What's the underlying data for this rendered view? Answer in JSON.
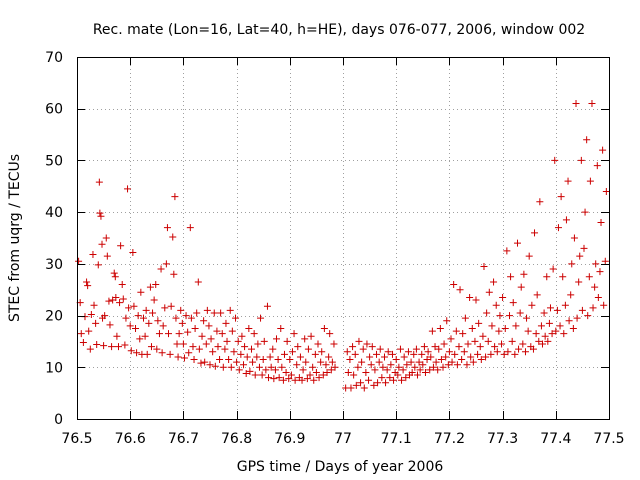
{
  "chart_data": {
    "type": "scatter",
    "title": "Rec. mate (Lon=16, Lat=40, h=HE), days 076-077, 2006, window 002",
    "xlabel": "GPS time / Days of year 2006",
    "ylabel": "STEC from uqrg / TECUs",
    "xlim": [
      76.5,
      77.5
    ],
    "ylim": [
      0,
      70
    ],
    "xticks": [
      76.5,
      76.6,
      76.7,
      76.8,
      76.9,
      77.0,
      77.1,
      77.2,
      77.3,
      77.4,
      77.5
    ],
    "xtick_labels": [
      "76.5",
      "76.6",
      "76.7",
      "76.8",
      "76.9",
      "77",
      "77.1",
      "77.2",
      "77.3",
      "77.4",
      "77.5"
    ],
    "yticks": [
      0,
      10,
      20,
      30,
      40,
      50,
      60,
      70
    ],
    "ytick_labels": [
      "0",
      "10",
      "20",
      "30",
      "40",
      "50",
      "60",
      "70"
    ],
    "grid": true,
    "marker": "+",
    "color": "#cc0000",
    "points": [
      [
        76.503,
        30.5
      ],
      [
        76.506,
        22.5
      ],
      [
        76.508,
        16.5
      ],
      [
        76.512,
        14.8
      ],
      [
        76.515,
        19.8
      ],
      [
        76.518,
        26.5
      ],
      [
        76.52,
        25.8
      ],
      [
        76.522,
        17.0
      ],
      [
        76.525,
        13.5
      ],
      [
        76.527,
        20.2
      ],
      [
        76.53,
        31.8
      ],
      [
        76.532,
        22.0
      ],
      [
        76.535,
        18.5
      ],
      [
        76.537,
        14.4
      ],
      [
        76.54,
        29.8
      ],
      [
        76.542,
        45.8
      ],
      [
        76.543,
        39.8
      ],
      [
        76.545,
        39.2
      ],
      [
        76.547,
        33.8
      ],
      [
        76.548,
        19.5
      ],
      [
        76.55,
        14.2
      ],
      [
        76.552,
        20.0
      ],
      [
        76.555,
        35.0
      ],
      [
        76.557,
        31.5
      ],
      [
        76.56,
        22.8
      ],
      [
        76.562,
        18.2
      ],
      [
        76.565,
        14.0
      ],
      [
        76.567,
        23.0
      ],
      [
        76.57,
        28.2
      ],
      [
        76.572,
        27.5
      ],
      [
        76.573,
        23.5
      ],
      [
        76.575,
        16.0
      ],
      [
        76.578,
        14.0
      ],
      [
        76.58,
        22.5
      ],
      [
        76.582,
        33.5
      ],
      [
        76.585,
        26.0
      ],
      [
        76.587,
        23.2
      ],
      [
        76.59,
        14.3
      ],
      [
        76.592,
        19.5
      ],
      [
        76.595,
        44.5
      ],
      [
        76.597,
        21.5
      ],
      [
        76.6,
        18.0
      ],
      [
        76.602,
        13.2
      ],
      [
        76.605,
        32.2
      ],
      [
        76.607,
        21.8
      ],
      [
        76.61,
        17.5
      ],
      [
        76.612,
        12.8
      ],
      [
        76.615,
        20.0
      ],
      [
        76.618,
        15.5
      ],
      [
        76.62,
        24.5
      ],
      [
        76.622,
        12.5
      ],
      [
        76.625,
        19.5
      ],
      [
        76.628,
        16.0
      ],
      [
        76.63,
        21.0
      ],
      [
        76.632,
        12.5
      ],
      [
        76.635,
        18.5
      ],
      [
        76.638,
        25.5
      ],
      [
        76.64,
        14.0
      ],
      [
        76.642,
        20.5
      ],
      [
        76.645,
        23.0
      ],
      [
        76.648,
        26.0
      ],
      [
        76.65,
        13.5
      ],
      [
        76.652,
        19.0
      ],
      [
        76.655,
        16.5
      ],
      [
        76.658,
        29.0
      ],
      [
        76.66,
        12.8
      ],
      [
        76.662,
        18.0
      ],
      [
        76.665,
        21.5
      ],
      [
        76.668,
        30.0
      ],
      [
        76.67,
        37.0
      ],
      [
        76.672,
        16.5
      ],
      [
        76.675,
        12.5
      ],
      [
        76.677,
        21.8
      ],
      [
        76.68,
        35.2
      ],
      [
        76.682,
        28.0
      ],
      [
        76.684,
        43.0
      ],
      [
        76.686,
        19.5
      ],
      [
        76.688,
        14.5
      ],
      [
        76.69,
        12.0
      ],
      [
        76.692,
        16.5
      ],
      [
        76.695,
        21.0
      ],
      [
        76.698,
        18.5
      ],
      [
        76.7,
        14.5
      ],
      [
        76.702,
        11.8
      ],
      [
        76.705,
        20.0
      ],
      [
        76.708,
        16.8
      ],
      [
        76.71,
        12.8
      ],
      [
        76.713,
        37.0
      ],
      [
        76.715,
        19.5
      ],
      [
        76.718,
        14.0
      ],
      [
        76.72,
        11.5
      ],
      [
        76.722,
        17.5
      ],
      [
        76.725,
        20.5
      ],
      [
        76.728,
        26.5
      ],
      [
        76.73,
        13.5
      ],
      [
        76.733,
        10.8
      ],
      [
        76.735,
        16.0
      ],
      [
        76.738,
        19.0
      ],
      [
        76.74,
        11.0
      ],
      [
        76.743,
        14.5
      ],
      [
        76.745,
        21.0
      ],
      [
        76.748,
        18.0
      ],
      [
        76.75,
        10.5
      ],
      [
        76.752,
        15.5
      ],
      [
        76.755,
        13.0
      ],
      [
        76.758,
        20.5
      ],
      [
        76.76,
        10.2
      ],
      [
        76.763,
        17.0
      ],
      [
        76.765,
        14.0
      ],
      [
        76.768,
        11.5
      ],
      [
        76.77,
        20.5
      ],
      [
        76.773,
        16.5
      ],
      [
        76.775,
        10.0
      ],
      [
        76.778,
        13.5
      ],
      [
        76.78,
        18.5
      ],
      [
        76.782,
        15.0
      ],
      [
        76.785,
        11.5
      ],
      [
        76.788,
        21.0
      ],
      [
        76.79,
        10.0
      ],
      [
        76.792,
        17.0
      ],
      [
        76.795,
        13.0
      ],
      [
        76.798,
        19.5
      ],
      [
        76.8,
        11.0
      ],
      [
        76.803,
        15.0
      ],
      [
        76.805,
        9.5
      ],
      [
        76.808,
        12.5
      ],
      [
        76.81,
        16.0
      ],
      [
        76.813,
        10.5
      ],
      [
        76.815,
        14.0
      ],
      [
        76.818,
        8.8
      ],
      [
        76.82,
        12.0
      ],
      [
        76.823,
        17.5
      ],
      [
        76.825,
        9.2
      ],
      [
        76.828,
        13.5
      ],
      [
        76.83,
        11.0
      ],
      [
        76.833,
        16.5
      ],
      [
        76.835,
        8.5
      ],
      [
        76.838,
        12.0
      ],
      [
        76.84,
        14.5
      ],
      [
        76.843,
        10.0
      ],
      [
        76.845,
        19.5
      ],
      [
        76.848,
        8.5
      ],
      [
        76.85,
        11.5
      ],
      [
        76.852,
        15.0
      ],
      [
        76.855,
        9.5
      ],
      [
        76.858,
        21.8
      ],
      [
        76.86,
        8.0
      ],
      [
        76.863,
        12.0
      ],
      [
        76.865,
        10.0
      ],
      [
        76.868,
        13.5
      ],
      [
        76.87,
        7.8
      ],
      [
        76.873,
        9.5
      ],
      [
        76.875,
        15.5
      ],
      [
        76.878,
        11.5
      ],
      [
        76.88,
        8.0
      ],
      [
        76.883,
        17.5
      ],
      [
        76.885,
        10.0
      ],
      [
        76.888,
        7.5
      ],
      [
        76.89,
        12.5
      ],
      [
        76.893,
        9.0
      ],
      [
        76.895,
        15.0
      ],
      [
        76.898,
        7.8
      ],
      [
        76.9,
        11.5
      ],
      [
        76.903,
        8.5
      ],
      [
        76.905,
        13.0
      ],
      [
        76.908,
        16.5
      ],
      [
        76.91,
        7.5
      ],
      [
        76.913,
        10.5
      ],
      [
        76.915,
        14.0
      ],
      [
        76.918,
        8.0
      ],
      [
        76.92,
        12.0
      ],
      [
        76.923,
        7.5
      ],
      [
        76.925,
        9.5
      ],
      [
        76.928,
        15.5
      ],
      [
        76.93,
        11.0
      ],
      [
        76.933,
        7.8
      ],
      [
        76.935,
        13.5
      ],
      [
        76.938,
        8.5
      ],
      [
        76.94,
        16.0
      ],
      [
        76.943,
        10.0
      ],
      [
        76.945,
        7.5
      ],
      [
        76.948,
        12.5
      ],
      [
        76.95,
        9.0
      ],
      [
        76.953,
        14.5
      ],
      [
        76.955,
        8.0
      ],
      [
        76.958,
        11.0
      ],
      [
        76.96,
        13.0
      ],
      [
        76.963,
        8.5
      ],
      [
        76.965,
        17.5
      ],
      [
        76.968,
        10.5
      ],
      [
        76.97,
        9.0
      ],
      [
        76.973,
        12.0
      ],
      [
        76.975,
        16.5
      ],
      [
        76.978,
        9.5
      ],
      [
        76.98,
        11.0
      ],
      [
        76.983,
        14.5
      ],
      [
        76.985,
        10.0
      ],
      [
        77.005,
        6.0
      ],
      [
        77.008,
        13.0
      ],
      [
        77.01,
        9.0
      ],
      [
        77.013,
        11.5
      ],
      [
        77.015,
        6.0
      ],
      [
        77.018,
        14.0
      ],
      [
        77.02,
        8.5
      ],
      [
        77.023,
        12.5
      ],
      [
        77.025,
        6.5
      ],
      [
        77.028,
        10.0
      ],
      [
        77.03,
        15.0
      ],
      [
        77.033,
        7.0
      ],
      [
        77.035,
        11.0
      ],
      [
        77.038,
        13.5
      ],
      [
        77.04,
        6.0
      ],
      [
        77.043,
        9.0
      ],
      [
        77.045,
        14.5
      ],
      [
        77.048,
        7.5
      ],
      [
        77.05,
        12.0
      ],
      [
        77.053,
        10.5
      ],
      [
        77.055,
        14.0
      ],
      [
        77.058,
        6.5
      ],
      [
        77.06,
        9.5
      ],
      [
        77.063,
        12.5
      ],
      [
        77.065,
        7.0
      ],
      [
        77.068,
        11.0
      ],
      [
        77.07,
        13.5
      ],
      [
        77.073,
        8.0
      ],
      [
        77.075,
        10.0
      ],
      [
        77.078,
        12.0
      ],
      [
        77.08,
        7.0
      ],
      [
        77.083,
        9.5
      ],
      [
        77.085,
        13.0
      ],
      [
        77.088,
        8.0
      ],
      [
        77.09,
        10.5
      ],
      [
        77.093,
        12.5
      ],
      [
        77.095,
        7.5
      ],
      [
        77.098,
        9.0
      ],
      [
        77.1,
        11.5
      ],
      [
        77.103,
        8.5
      ],
      [
        77.105,
        10.0
      ],
      [
        77.108,
        13.5
      ],
      [
        77.11,
        7.5
      ],
      [
        77.113,
        9.5
      ],
      [
        77.115,
        12.0
      ],
      [
        77.118,
        8.0
      ],
      [
        77.12,
        10.5
      ],
      [
        77.123,
        13.0
      ],
      [
        77.125,
        8.5
      ],
      [
        77.128,
        11.0
      ],
      [
        77.13,
        9.0
      ],
      [
        77.133,
        12.5
      ],
      [
        77.135,
        10.0
      ],
      [
        77.138,
        13.5
      ],
      [
        77.14,
        8.5
      ],
      [
        77.143,
        11.0
      ],
      [
        77.145,
        9.5
      ],
      [
        77.148,
        12.5
      ],
      [
        77.15,
        10.5
      ],
      [
        77.153,
        14.0
      ],
      [
        77.155,
        9.0
      ],
      [
        77.158,
        11.5
      ],
      [
        77.16,
        13.0
      ],
      [
        77.163,
        9.5
      ],
      [
        77.165,
        12.0
      ],
      [
        77.168,
        17.0
      ],
      [
        77.17,
        10.0
      ],
      [
        77.173,
        14.0
      ],
      [
        77.175,
        11.0
      ],
      [
        77.178,
        9.5
      ],
      [
        77.18,
        13.5
      ],
      [
        77.183,
        17.5
      ],
      [
        77.185,
        11.5
      ],
      [
        77.188,
        10.0
      ],
      [
        77.19,
        14.5
      ],
      [
        77.193,
        12.0
      ],
      [
        77.195,
        19.0
      ],
      [
        77.198,
        10.5
      ],
      [
        77.2,
        13.0
      ],
      [
        77.203,
        15.5
      ],
      [
        77.205,
        11.0
      ],
      [
        77.208,
        26.0
      ],
      [
        77.21,
        12.5
      ],
      [
        77.213,
        17.0
      ],
      [
        77.215,
        10.5
      ],
      [
        77.218,
        14.0
      ],
      [
        77.22,
        25.0
      ],
      [
        77.223,
        11.5
      ],
      [
        77.225,
        16.5
      ],
      [
        77.228,
        13.0
      ],
      [
        77.23,
        19.5
      ],
      [
        77.233,
        10.5
      ],
      [
        77.235,
        14.5
      ],
      [
        77.238,
        23.5
      ],
      [
        77.24,
        12.0
      ],
      [
        77.243,
        17.5
      ],
      [
        77.245,
        11.0
      ],
      [
        77.248,
        15.0
      ],
      [
        77.25,
        23.0
      ],
      [
        77.253,
        12.5
      ],
      [
        77.255,
        18.5
      ],
      [
        77.258,
        14.0
      ],
      [
        77.26,
        11.5
      ],
      [
        77.263,
        16.0
      ],
      [
        77.265,
        29.5
      ],
      [
        77.268,
        12.0
      ],
      [
        77.27,
        20.5
      ],
      [
        77.273,
        15.0
      ],
      [
        77.275,
        24.5
      ],
      [
        77.278,
        12.5
      ],
      [
        77.28,
        18.0
      ],
      [
        77.283,
        26.5
      ],
      [
        77.285,
        14.0
      ],
      [
        77.288,
        22.0
      ],
      [
        77.29,
        13.0
      ],
      [
        77.293,
        17.0
      ],
      [
        77.295,
        20.0
      ],
      [
        77.298,
        14.5
      ],
      [
        77.3,
        23.5
      ],
      [
        77.303,
        12.5
      ],
      [
        77.305,
        17.5
      ],
      [
        77.308,
        32.5
      ],
      [
        77.31,
        13.0
      ],
      [
        77.313,
        20.0
      ],
      [
        77.315,
        27.5
      ],
      [
        77.318,
        15.0
      ],
      [
        77.32,
        22.5
      ],
      [
        77.323,
        12.5
      ],
      [
        77.325,
        18.0
      ],
      [
        77.328,
        34.0
      ],
      [
        77.33,
        13.5
      ],
      [
        77.333,
        20.5
      ],
      [
        77.335,
        25.5
      ],
      [
        77.338,
        14.5
      ],
      [
        77.34,
        28.0
      ],
      [
        77.343,
        13.0
      ],
      [
        77.345,
        19.5
      ],
      [
        77.348,
        17.0
      ],
      [
        77.35,
        31.5
      ],
      [
        77.353,
        14.0
      ],
      [
        77.355,
        22.0
      ],
      [
        77.358,
        13.5
      ],
      [
        77.36,
        36.0
      ],
      [
        77.363,
        16.5
      ],
      [
        77.365,
        24.0
      ],
      [
        77.368,
        15.0
      ],
      [
        77.37,
        42.0
      ],
      [
        77.373,
        18.0
      ],
      [
        77.375,
        14.5
      ],
      [
        77.378,
        20.5
      ],
      [
        77.38,
        16.0
      ],
      [
        77.383,
        27.5
      ],
      [
        77.385,
        15.0
      ],
      [
        77.388,
        18.5
      ],
      [
        77.39,
        21.5
      ],
      [
        77.393,
        16.5
      ],
      [
        77.395,
        29.0
      ],
      [
        77.398,
        50.0
      ],
      [
        77.4,
        17.0
      ],
      [
        77.403,
        21.0
      ],
      [
        77.405,
        37.0
      ],
      [
        77.408,
        18.0
      ],
      [
        77.41,
        43.0
      ],
      [
        77.413,
        27.5
      ],
      [
        77.415,
        16.5
      ],
      [
        77.418,
        22.0
      ],
      [
        77.42,
        38.5
      ],
      [
        77.423,
        46.0
      ],
      [
        77.425,
        19.0
      ],
      [
        77.428,
        24.0
      ],
      [
        77.43,
        30.0
      ],
      [
        77.433,
        17.5
      ],
      [
        77.435,
        35.0
      ],
      [
        77.438,
        61.0
      ],
      [
        77.44,
        19.5
      ],
      [
        77.443,
        26.5
      ],
      [
        77.445,
        31.5
      ],
      [
        77.448,
        50.0
      ],
      [
        77.45,
        21.0
      ],
      [
        77.453,
        33.0
      ],
      [
        77.455,
        40.0
      ],
      [
        77.458,
        54.0
      ],
      [
        77.46,
        20.0
      ],
      [
        77.463,
        27.5
      ],
      [
        77.465,
        46.0
      ],
      [
        77.468,
        61.0
      ],
      [
        77.47,
        21.5
      ],
      [
        77.473,
        25.5
      ],
      [
        77.475,
        30.0
      ],
      [
        77.478,
        49.0
      ],
      [
        77.48,
        23.5
      ],
      [
        77.483,
        28.5
      ],
      [
        77.485,
        38.0
      ],
      [
        77.488,
        52.0
      ],
      [
        77.49,
        22.0
      ],
      [
        77.493,
        30.5
      ],
      [
        77.495,
        44.0
      ]
    ]
  }
}
